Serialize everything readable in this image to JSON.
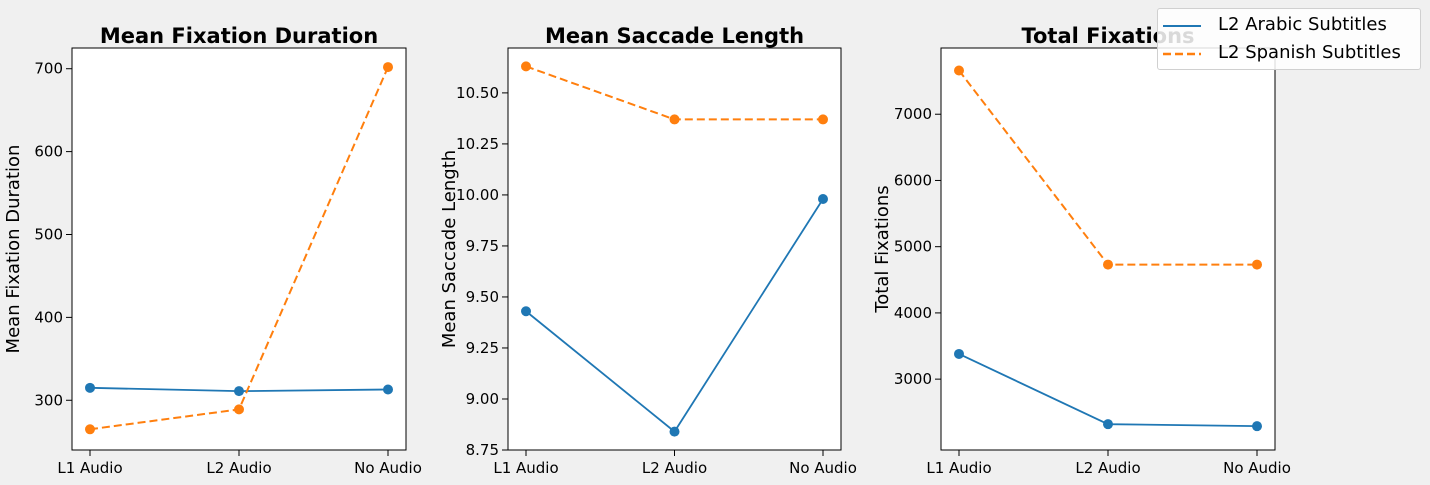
{
  "chart_data": [
    {
      "type": "line",
      "title": "Mean Fixation Duration",
      "xlabel": "",
      "ylabel": "Mean Fixation Duration",
      "categories": [
        "L1 Audio",
        "L2 Audio",
        "No Audio"
      ],
      "ylim": [
        240,
        725
      ],
      "yticks": [
        300,
        400,
        500,
        600,
        700
      ],
      "ytick_labels": [
        "300",
        "400",
        "500",
        "600",
        "700"
      ],
      "series": [
        {
          "name": "L2 Arabic Subtitles",
          "values": [
            315,
            311,
            313
          ]
        },
        {
          "name": "L2 Spanish Subtitles",
          "values": [
            265,
            289,
            702
          ]
        }
      ]
    },
    {
      "type": "line",
      "title": "Mean Saccade Length",
      "xlabel": "",
      "ylabel": "Mean Saccade Length",
      "categories": [
        "L1 Audio",
        "L2 Audio",
        "No Audio"
      ],
      "ylim": [
        8.75,
        10.72
      ],
      "yticks": [
        8.75,
        9.0,
        9.25,
        9.5,
        9.75,
        10.0,
        10.25,
        10.5
      ],
      "ytick_labels": [
        "8.75",
        "9.00",
        "9.25",
        "9.50",
        "9.75",
        "10.00",
        "10.25",
        "10.50"
      ],
      "series": [
        {
          "name": "L2 Arabic Subtitles",
          "values": [
            9.43,
            8.84,
            9.98
          ]
        },
        {
          "name": "L2 Spanish Subtitles",
          "values": [
            10.63,
            10.37,
            10.37
          ]
        }
      ]
    },
    {
      "type": "line",
      "title": "Total Fixations",
      "xlabel": "",
      "ylabel": "Total Fixations",
      "categories": [
        "L1 Audio",
        "L2 Audio",
        "No Audio"
      ],
      "ylim": [
        1930,
        8000
      ],
      "yticks": [
        3000,
        4000,
        5000,
        6000,
        7000
      ],
      "ytick_labels": [
        "3000",
        "4000",
        "5000",
        "6000",
        "7000"
      ],
      "series": [
        {
          "name": "L2 Arabic Subtitles",
          "values": [
            3380,
            2320,
            2290
          ]
        },
        {
          "name": "L2 Spanish Subtitles",
          "values": [
            7660,
            4730,
            4730
          ]
        }
      ]
    }
  ],
  "legend": {
    "placement": "upper-right",
    "items": [
      {
        "label": "L2 Arabic Subtitles",
        "color": "#1f77b4",
        "style": "solid"
      },
      {
        "label": "L2 Spanish Subtitles",
        "color": "#ff7f0e",
        "style": "dashed"
      }
    ]
  },
  "colors": {
    "background": "#f0f0f0",
    "plot_background": "#ffffff",
    "arabic": "#1f77b4",
    "spanish": "#ff7f0e"
  }
}
